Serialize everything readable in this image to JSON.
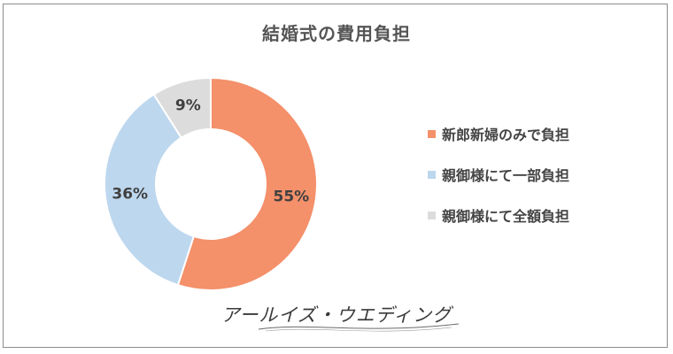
{
  "chart_data": {
    "type": "pie",
    "title": "結婚式の費用負担",
    "categories": [
      "新郎新婦のみで負担",
      "親御様にて一部負担",
      "親御様にて全額負担"
    ],
    "values": [
      55,
      36,
      9
    ],
    "data_labels": [
      "55%",
      "36%",
      "9%"
    ],
    "colors": [
      "#f4906a",
      "#bdd7ee",
      "#dcdcdc"
    ],
    "donut": true,
    "legend_position": "right"
  },
  "brand": {
    "text": "アールイズ・ウエディング"
  }
}
